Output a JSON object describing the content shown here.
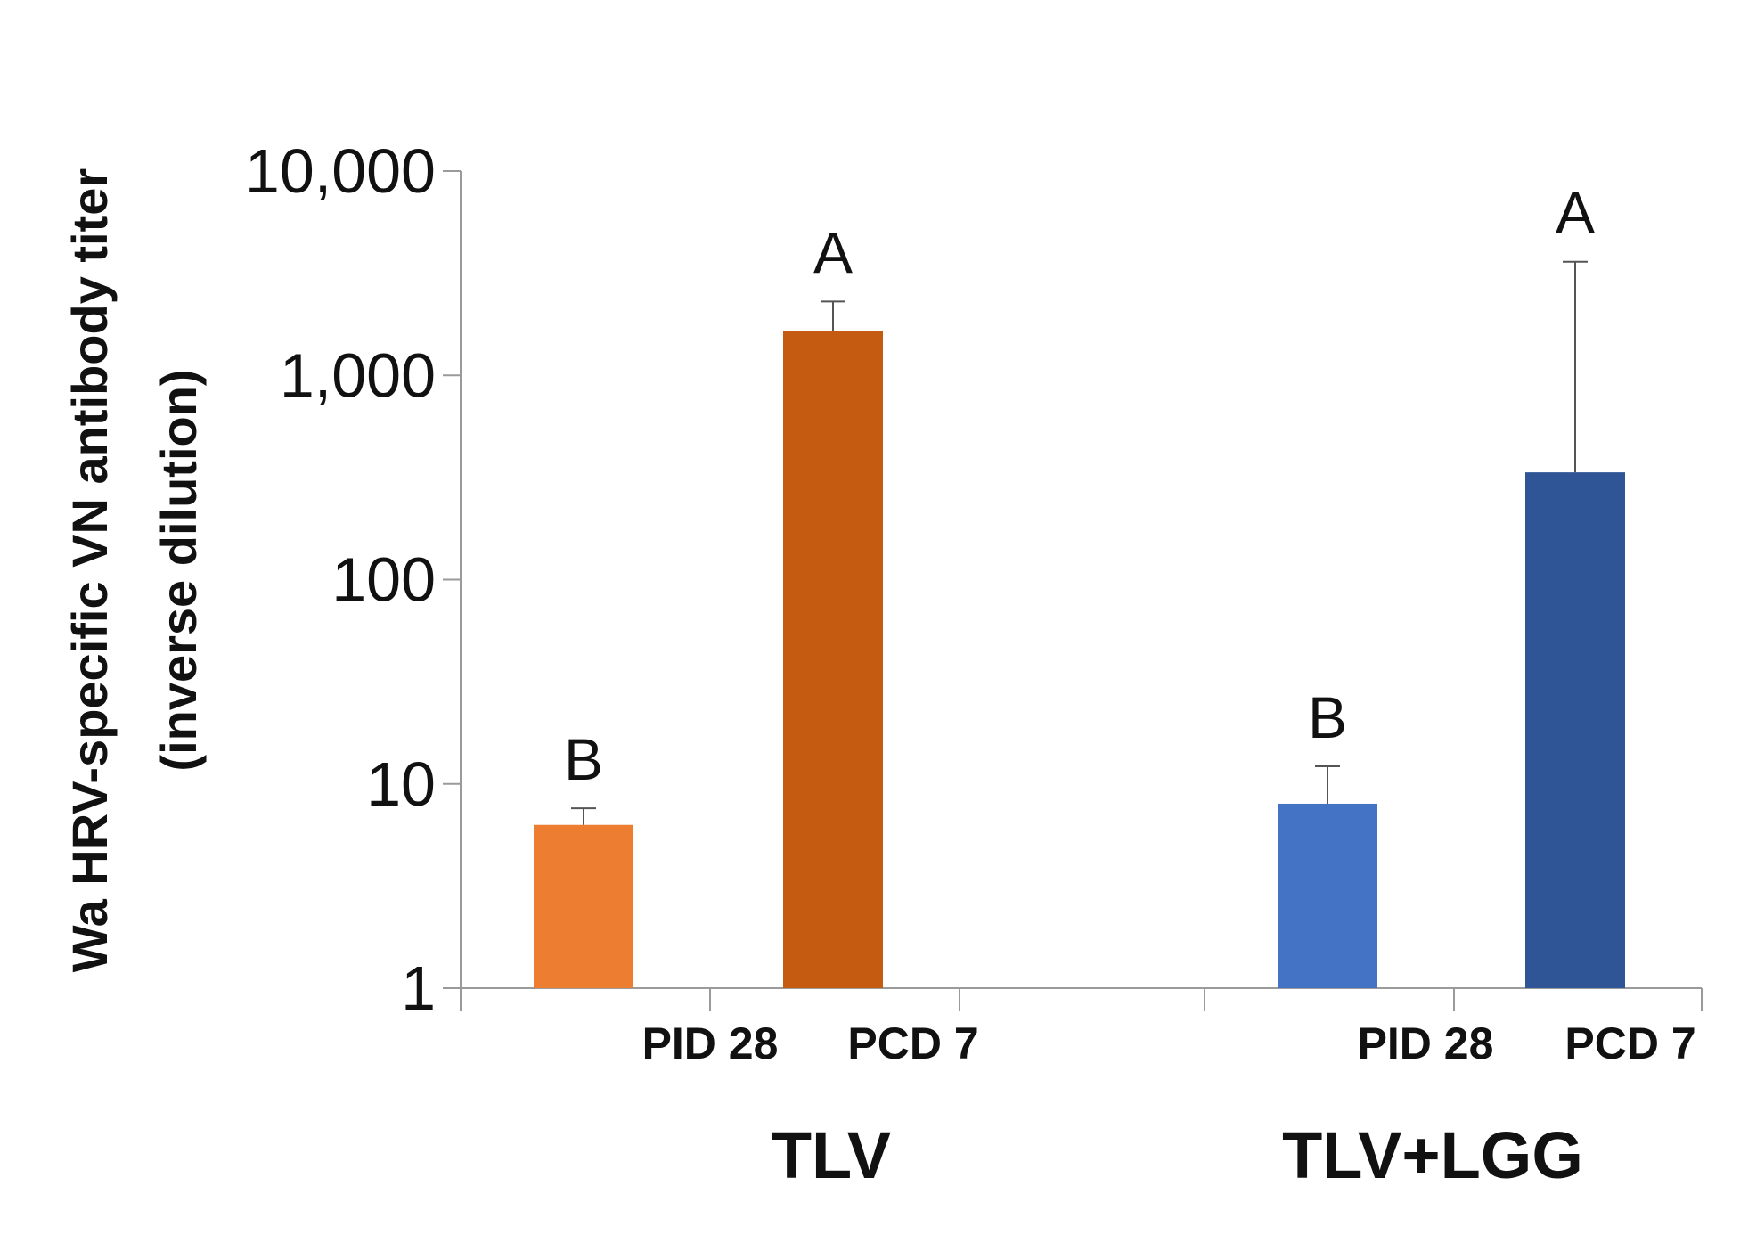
{
  "chart_data": {
    "type": "bar",
    "scale": "log",
    "ylabel_line1": "Wa HRV-specific VN antibody titer",
    "ylabel_line2": "(inverse dilution)",
    "ylim": [
      1,
      10000
    ],
    "yticks": [
      {
        "value": 1,
        "label": "1"
      },
      {
        "value": 10,
        "label": "10"
      },
      {
        "value": 100,
        "label": "100"
      },
      {
        "value": 1000,
        "label": "1,000"
      },
      {
        "value": 10000,
        "label": "10,000"
      }
    ],
    "groups": [
      {
        "name": "TLV",
        "bars": [
          {
            "category": "PID 28",
            "value": 6.3,
            "error_upper": 7.6,
            "color": "#ed7d31",
            "significance": "B"
          },
          {
            "category": "PCD 7",
            "value": 1650,
            "error_upper": 2300,
            "color": "#c55a11",
            "significance": "A"
          }
        ]
      },
      {
        "name": "TLV+LGG",
        "bars": [
          {
            "category": "PID 28",
            "value": 8.0,
            "error_upper": 12.2,
            "color": "#4472c4",
            "significance": "B"
          },
          {
            "category": "PCD 7",
            "value": 335,
            "error_upper": 3600,
            "color": "#2f5597",
            "significance": "A"
          }
        ]
      }
    ]
  }
}
